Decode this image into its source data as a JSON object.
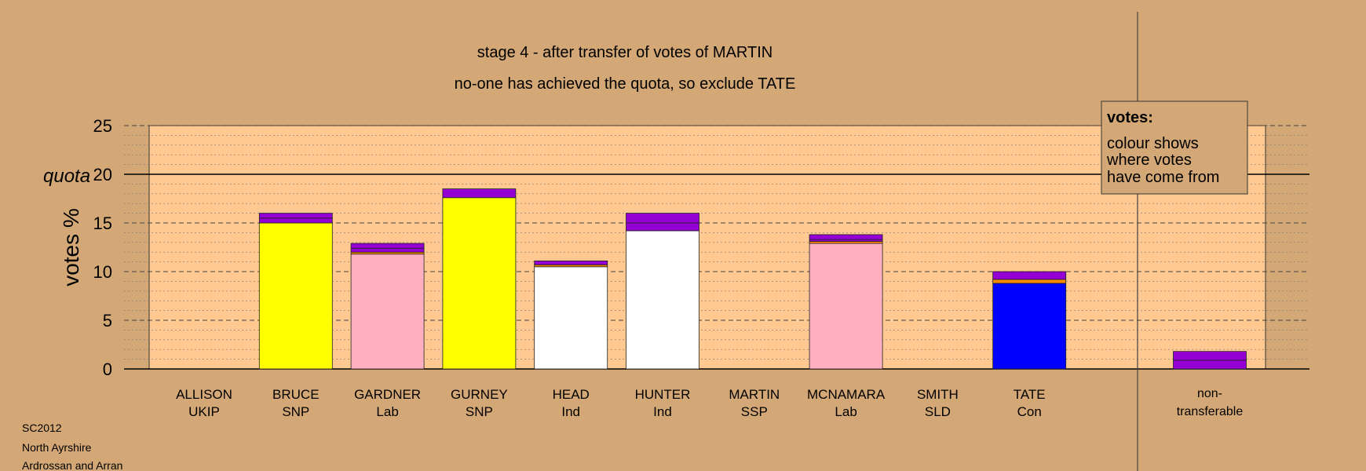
{
  "chart_data": {
    "type": "bar",
    "title": "stage 4 - after transfer of votes of MARTIN",
    "subtitle": "no-one has achieved the quota, so exclude TATE",
    "ylabel": "votes %",
    "ylim": [
      0,
      25
    ],
    "yticks": [
      "0",
      "5",
      "10",
      "15",
      "20",
      "25"
    ],
    "quota": {
      "label": "quota",
      "value": 20
    },
    "grid": true,
    "legend": {
      "title": "votes:",
      "lines": [
        "colour shows",
        "where votes",
        "have come from"
      ],
      "placement": "top-right"
    },
    "colors": {
      "background": "#d4a876",
      "plot_area": "#ffc991",
      "SNP": "#ffff00",
      "Lab": "#ffb0c0",
      "Ind": "#ffffff",
      "Con": "#0000ff",
      "transfer": "#9400d3",
      "other_transfer": "#ff8c00",
      "grid": "#555555"
    },
    "candidates": [
      {
        "name": "ALLISON",
        "party": "UKIP",
        "segments": []
      },
      {
        "name": "BRUCE",
        "party": "SNP",
        "segments": [
          {
            "value": 15.0,
            "color": "#ffff00"
          },
          {
            "value": 0.5,
            "color": "#9400d3"
          },
          {
            "value": 0.5,
            "color": "#9400d3"
          }
        ]
      },
      {
        "name": "GARDNER",
        "party": "Lab",
        "segments": [
          {
            "value": 11.8,
            "color": "#ffb0c0"
          },
          {
            "value": 0.2,
            "color": "#ff8c00"
          },
          {
            "value": 0.4,
            "color": "#9400d3"
          },
          {
            "value": 0.5,
            "color": "#9400d3"
          }
        ]
      },
      {
        "name": "GURNEY",
        "party": "SNP",
        "segments": [
          {
            "value": 17.6,
            "color": "#ffff00"
          },
          {
            "value": 0.9,
            "color": "#9400d3"
          }
        ]
      },
      {
        "name": "HEAD",
        "party": "Ind",
        "segments": [
          {
            "value": 10.5,
            "color": "#ffffff"
          },
          {
            "value": 0.2,
            "color": "#ff8c00"
          },
          {
            "value": 0.4,
            "color": "#9400d3"
          }
        ]
      },
      {
        "name": "HUNTER",
        "party": "Ind",
        "segments": [
          {
            "value": 14.2,
            "color": "#ffffff"
          },
          {
            "value": 0.8,
            "color": "#9400d3"
          },
          {
            "value": 1.0,
            "color": "#9400d3"
          }
        ]
      },
      {
        "name": "MARTIN",
        "party": "SSP",
        "segments": []
      },
      {
        "name": "MCNAMARA",
        "party": "Lab",
        "segments": [
          {
            "value": 12.9,
            "color": "#ffb0c0"
          },
          {
            "value": 0.2,
            "color": "#ff8c00"
          },
          {
            "value": 0.2,
            "color": "#9400d3"
          },
          {
            "value": 0.5,
            "color": "#9400d3"
          }
        ]
      },
      {
        "name": "SMITH",
        "party": "SLD",
        "segments": []
      },
      {
        "name": "TATE",
        "party": "Con",
        "segments": [
          {
            "value": 8.8,
            "color": "#0000ff"
          },
          {
            "value": 0.4,
            "color": "#ff8c00"
          },
          {
            "value": 0.8,
            "color": "#9400d3"
          }
        ]
      }
    ],
    "nontransferable": {
      "label_line1": "non-",
      "label_line2": "transferable",
      "segments": [
        {
          "value": 0.9,
          "color": "#9400d3"
        },
        {
          "value": 0.9,
          "color": "#9400d3"
        }
      ]
    }
  },
  "footer": {
    "line1": "SC2012",
    "line2": "North Ayrshire",
    "line3": "Ardrossan and Arran"
  }
}
